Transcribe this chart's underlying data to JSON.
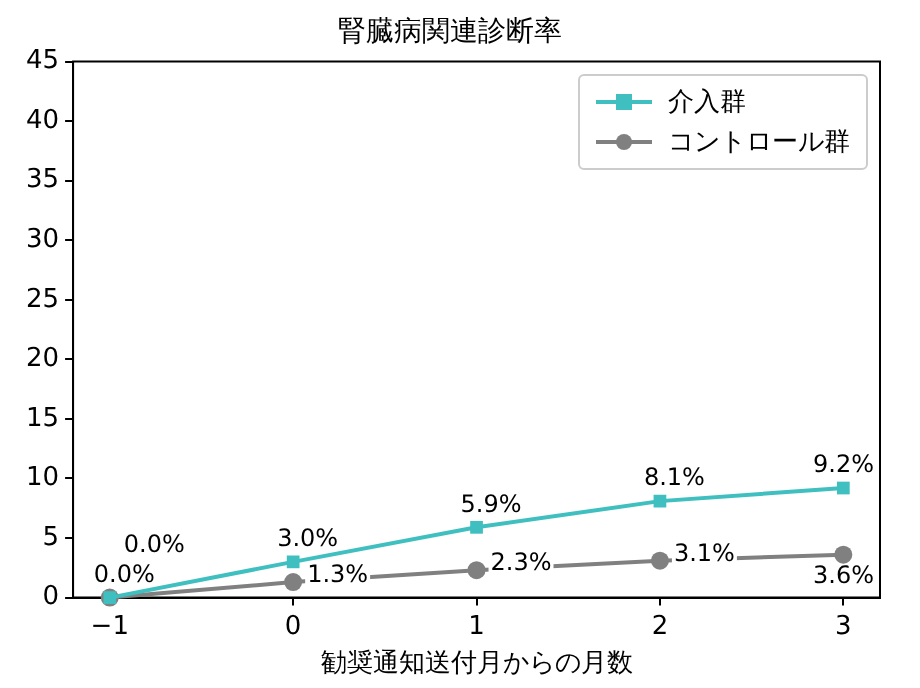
{
  "chart_data": {
    "type": "line",
    "title": "腎臓病関連診断率",
    "xlabel": "勧奨通知送付月からの月数",
    "x": [
      -1,
      0,
      1,
      2,
      3
    ],
    "series": [
      {
        "name": "介入群",
        "color": "#3fbfbf",
        "marker": "square",
        "values": [
          0.0,
          3.0,
          5.9,
          8.1,
          9.2
        ],
        "value_labels": [
          "0.0%",
          "3.0%",
          "5.9%",
          "8.1%",
          "9.2%"
        ]
      },
      {
        "name": "コントロール群",
        "color": "#808080",
        "marker": "circle",
        "values": [
          0.0,
          1.3,
          2.3,
          3.1,
          3.6
        ],
        "value_labels": [
          "0.0%",
          "1.3%",
          "2.3%",
          "3.1%",
          "3.6%"
        ]
      }
    ],
    "xlim": [
      -1.2,
      3.2
    ],
    "xticks": [
      -1,
      0,
      1,
      2,
      3
    ],
    "ylim": [
      0,
      45
    ],
    "yticks": [
      0,
      5,
      10,
      15,
      20,
      25,
      30,
      35,
      40,
      45
    ],
    "grid": false,
    "legend": "top right",
    "line_style": "solid"
  }
}
